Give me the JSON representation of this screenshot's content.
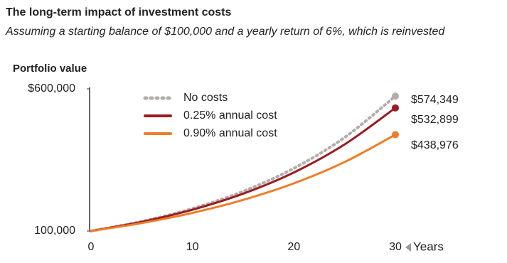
{
  "chart_data": {
    "type": "line",
    "title": "The long-term impact of investment costs",
    "subtitle": "Assuming a starting balance of $100,000 and a yearly return of 6%, which is reinvested",
    "y_label": "Portfolio value",
    "x_label": "Years",
    "x": [
      0,
      5,
      10,
      15,
      20,
      25,
      30
    ],
    "xlim": [
      0,
      30
    ],
    "xticks": [
      0,
      10,
      20,
      30
    ],
    "ylim": [
      100000,
      600000
    ],
    "yticks": [
      {
        "value": 100000,
        "label": "100,000"
      },
      {
        "value": 600000,
        "label": "$600,000"
      }
    ],
    "series": [
      {
        "name": "No costs",
        "color": "#b3aca8",
        "dashed": true,
        "values": [
          100000,
          133823,
          179085,
          239656,
          320714,
          429187,
          574349
        ],
        "value_labels": [
          null,
          null,
          null,
          null,
          null,
          null,
          "$574,349"
        ]
      },
      {
        "name": "0.25% annual cost",
        "color": "#9b1c1f",
        "values": [
          100000,
          132254,
          174911,
          231327,
          305936,
          404610,
          532899
        ],
        "value_labels": [
          null,
          null,
          null,
          null,
          null,
          null,
          "$532,899"
        ]
      },
      {
        "name": "0.90% annual cost",
        "color": "#ee7d27",
        "values": [
          100000,
          127932,
          163666,
          209384,
          267867,
          342687,
          438976
        ],
        "value_labels": [
          null,
          null,
          null,
          null,
          null,
          null,
          "$438,976"
        ]
      }
    ]
  }
}
